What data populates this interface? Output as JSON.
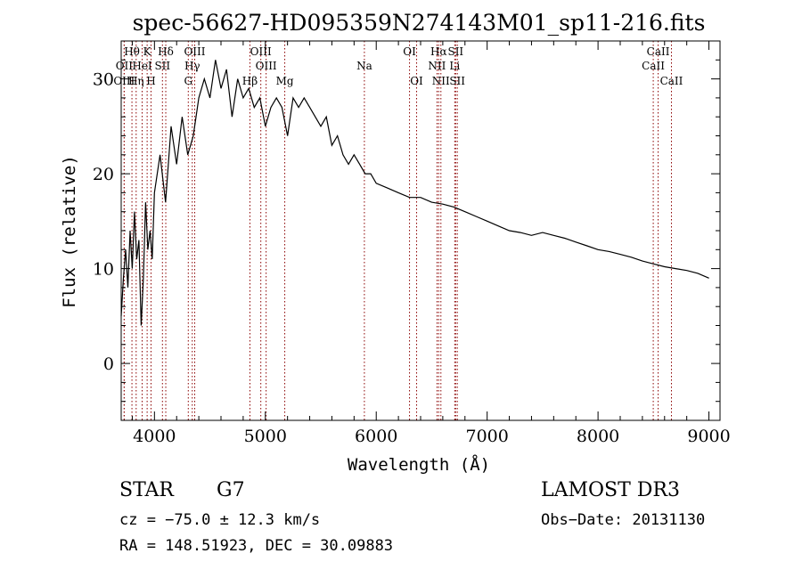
{
  "chart_data": {
    "type": "line",
    "title": "spec-56627-HD095359N274143M01_sp11-216.fits",
    "xlabel": "Wavelength (Å)",
    "ylabel": "Flux (relative)",
    "xlim": [
      3700,
      9100
    ],
    "ylim": [
      -6,
      34
    ],
    "xticks": [
      4000,
      5000,
      6000,
      7000,
      8000,
      9000
    ],
    "yticks": [
      0,
      10,
      20,
      30
    ],
    "series": [
      {
        "x": [
          3700,
          3720,
          3740,
          3760,
          3780,
          3800,
          3820,
          3840,
          3860,
          3880,
          3900,
          3920,
          3940,
          3960,
          3980,
          4000,
          4050,
          4100,
          4150,
          4200,
          4250,
          4300,
          4350,
          4400,
          4450,
          4500,
          4550,
          4600,
          4650,
          4700,
          4750,
          4800,
          4850,
          4900,
          4950,
          5000,
          5050,
          5100,
          5150,
          5200,
          5250,
          5300,
          5350,
          5400,
          5450,
          5500,
          5550,
          5600,
          5650,
          5700,
          5750,
          5800,
          5850,
          5900,
          5950,
          6000,
          6100,
          6200,
          6300,
          6400,
          6500,
          6600,
          6700,
          6800,
          6900,
          7000,
          7100,
          7200,
          7300,
          7400,
          7500,
          7600,
          7700,
          7800,
          7900,
          8000,
          8100,
          8200,
          8300,
          8400,
          8500,
          8600,
          8700,
          8800,
          8900,
          9000
        ],
        "y": [
          5,
          9,
          12,
          8,
          14,
          10,
          16,
          11,
          13,
          4,
          9,
          17,
          12,
          14,
          11,
          18,
          22,
          17,
          25,
          21,
          26,
          22,
          24,
          28,
          30,
          28,
          32,
          29,
          31,
          26,
          30,
          28,
          29,
          27,
          28,
          25,
          27,
          28,
          27,
          24,
          28,
          27,
          28,
          27,
          26,
          25,
          26,
          23,
          24,
          22,
          21,
          22,
          21,
          20,
          20,
          19,
          18.5,
          18,
          17.5,
          17.5,
          17,
          16.8,
          16.5,
          16,
          15.5,
          15,
          14.5,
          14,
          13.8,
          13.5,
          13.8,
          13.5,
          13.2,
          12.8,
          12.4,
          12,
          11.8,
          11.5,
          11.2,
          10.8,
          10.5,
          10.2,
          10,
          9.8,
          9.5,
          9
        ]
      }
    ],
    "lines": [
      {
        "label": "Hθ",
        "x": 3797,
        "row": 1
      },
      {
        "label": "OII",
        "x": 3727,
        "row": 2
      },
      {
        "label": "OIII",
        "x": 3727,
        "row": 3
      },
      {
        "label": "K",
        "x": 3934,
        "row": 1
      },
      {
        "label": "HeI",
        "x": 3889,
        "row": 2
      },
      {
        "label": "Hη",
        "x": 3835,
        "row": 3
      },
      {
        "label": "H",
        "x": 3969,
        "row": 3
      },
      {
        "label": "SII",
        "x": 4072,
        "row": 2
      },
      {
        "label": "Hδ",
        "x": 4102,
        "row": 1
      },
      {
        "label": "OIII",
        "x": 4363,
        "row": 1
      },
      {
        "label": "Hγ",
        "x": 4341,
        "row": 2
      },
      {
        "label": "G",
        "x": 4305,
        "row": 3
      },
      {
        "label": "OIII",
        "x": 4959,
        "row": 1
      },
      {
        "label": "OIII",
        "x": 5007,
        "row": 2
      },
      {
        "label": "Hβ",
        "x": 4861,
        "row": 3
      },
      {
        "label": "Mg",
        "x": 5175,
        "row": 3
      },
      {
        "label": "Na",
        "x": 5893,
        "row": 2
      },
      {
        "label": "OI",
        "x": 6300,
        "row": 1
      },
      {
        "label": "OI",
        "x": 6364,
        "row": 3
      },
      {
        "label": "Hα",
        "x": 6563,
        "row": 1
      },
      {
        "label": "NII",
        "x": 6548,
        "row": 2
      },
      {
        "label": "NII",
        "x": 6583,
        "row": 3
      },
      {
        "label": "SII",
        "x": 6716,
        "row": 1
      },
      {
        "label": "Li",
        "x": 6708,
        "row": 2
      },
      {
        "label": "SII",
        "x": 6731,
        "row": 3
      },
      {
        "label": "CaII",
        "x": 8542,
        "row": 1
      },
      {
        "label": "CaII",
        "x": 8498,
        "row": 2
      },
      {
        "label": "CaII",
        "x": 8662,
        "row": 3
      }
    ],
    "grid": false
  },
  "info": {
    "class_label": "STAR",
    "subclass": "G7",
    "survey": "LAMOST DR3",
    "cz": "cz = −75.0 ± 12.3 km/s",
    "obs_date": "Obs−Date: 20131130",
    "coords": "RA = 148.51923, DEC =  30.09883"
  },
  "colors": {
    "line_marker": "#8b0000",
    "spectrum": "#000000"
  }
}
